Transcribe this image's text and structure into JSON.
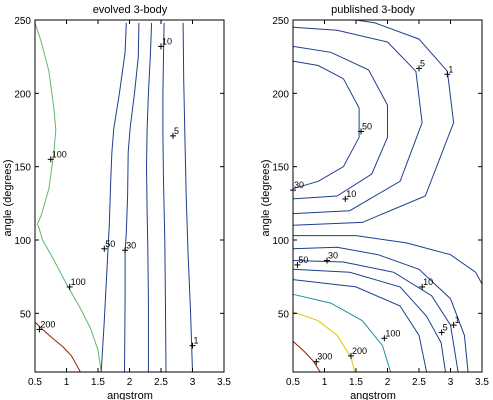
{
  "chart_data": [
    {
      "type": "contour",
      "title": "evolved 3-body",
      "xlabel": "angstrom",
      "ylabel": "angle (degrees)",
      "xlim": [
        0.5,
        3.5
      ],
      "ylim": [
        10,
        250
      ],
      "xticks": [
        0.5,
        1,
        1.5,
        2,
        2.5,
        3,
        3.5
      ],
      "yticks": [
        50,
        100,
        150,
        200,
        250
      ],
      "contours": [
        {
          "level_label": "",
          "color": "#8b2500",
          "points": [
            [
              0.5,
              44
            ],
            [
              0.62,
              39
            ],
            [
              0.78,
              33
            ],
            [
              0.95,
              27
            ],
            [
              1.08,
              21
            ],
            [
              1.17,
              14
            ],
            [
              1.22,
              10
            ]
          ]
        },
        {
          "level_label": "",
          "color": "#5fb86a",
          "points": [
            [
              1.55,
              10
            ],
            [
              1.5,
              25
            ],
            [
              1.38,
              40
            ],
            [
              1.2,
              55
            ],
            [
              1.0,
              70
            ],
            [
              0.78,
              88
            ],
            [
              0.62,
              100
            ],
            [
              0.55,
              110
            ]
          ]
        },
        {
          "level_label": "",
          "color": "#5fb86a",
          "points": [
            [
              0.5,
              248
            ],
            [
              0.6,
              235
            ],
            [
              0.72,
              215
            ],
            [
              0.8,
              190
            ],
            [
              0.83,
              175
            ],
            [
              0.8,
              160
            ],
            [
              0.72,
              135
            ],
            [
              0.6,
              117
            ],
            [
              0.53,
              110
            ]
          ]
        },
        {
          "level_label": "",
          "color": "#1e3f8f",
          "points": [
            [
              1.95,
              248
            ],
            [
              1.93,
              228
            ],
            [
              1.84,
              200
            ],
            [
              1.75,
              176
            ],
            [
              1.72,
              160
            ],
            [
              1.7,
              138
            ],
            [
              1.68,
              110
            ],
            [
              1.66,
              95
            ],
            [
              1.63,
              70
            ],
            [
              1.6,
              45
            ],
            [
              1.55,
              10
            ]
          ]
        },
        {
          "level_label": "",
          "color": "#1e3f8f",
          "points": [
            [
              2.15,
              248
            ],
            [
              2.14,
              225
            ],
            [
              2.08,
              200
            ],
            [
              2.01,
              176
            ],
            [
              1.98,
              160
            ],
            [
              1.97,
              130
            ],
            [
              1.95,
              105
            ],
            [
              1.93,
              92
            ],
            [
              1.93,
              60
            ],
            [
              1.92,
              10
            ]
          ]
        },
        {
          "level_label": "",
          "color": "#1e3f8f",
          "points": [
            [
              2.35,
              248
            ],
            [
              2.33,
              225
            ],
            [
              2.3,
              200
            ],
            [
              2.28,
              175
            ],
            [
              2.27,
              150
            ],
            [
              2.28,
              120
            ],
            [
              2.29,
              95
            ],
            [
              2.3,
              60
            ],
            [
              2.3,
              10
            ]
          ]
        },
        {
          "level_label": "",
          "color": "#1e3f8f",
          "points": [
            [
              2.55,
              248
            ],
            [
              2.54,
              225
            ],
            [
              2.53,
              200
            ],
            [
              2.53,
              172
            ],
            [
              2.54,
              140
            ],
            [
              2.56,
              100
            ],
            [
              2.57,
              60
            ],
            [
              2.58,
              10
            ]
          ]
        },
        {
          "level_label": "",
          "color": "#1e3f8f",
          "points": [
            [
              2.85,
              248
            ],
            [
              2.86,
              210
            ],
            [
              2.88,
              170
            ],
            [
              2.9,
              130
            ],
            [
              2.93,
              90
            ],
            [
              2.97,
              50
            ],
            [
              3.0,
              10
            ]
          ]
        }
      ],
      "labels": [
        {
          "text": "200",
          "x": 0.57,
          "y": 39
        },
        {
          "text": "100",
          "x": 1.05,
          "y": 68
        },
        {
          "text": "100",
          "x": 0.75,
          "y": 155
        },
        {
          "text": "50",
          "x": 1.6,
          "y": 94
        },
        {
          "text": "30",
          "x": 1.93,
          "y": 93
        },
        {
          "text": "10",
          "x": 2.5,
          "y": 232
        },
        {
          "text": "5",
          "x": 2.69,
          "y": 171
        },
        {
          "text": "1",
          "x": 3.0,
          "y": 28
        }
      ]
    },
    {
      "type": "contour",
      "title": "published 3-body",
      "xlabel": "angstrom",
      "ylabel": "angle (degrees)",
      "xlim": [
        0.5,
        3.5
      ],
      "ylim": [
        10,
        250
      ],
      "xticks": [
        0.5,
        1,
        1.5,
        2,
        2.5,
        3,
        3.5
      ],
      "yticks": [
        50,
        100,
        150,
        200,
        250
      ],
      "contours": [
        {
          "level_label": "",
          "color": "#8b2500",
          "points": [
            [
              0.5,
              31
            ],
            [
              0.68,
              24
            ],
            [
              0.83,
              17
            ],
            [
              0.93,
              10
            ]
          ]
        },
        {
          "level_label": "",
          "color": "#e8c000",
          "points": [
            [
              0.5,
              51
            ],
            [
              0.9,
              45
            ],
            [
              1.2,
              35
            ],
            [
              1.42,
              20
            ],
            [
              1.48,
              10
            ]
          ]
        },
        {
          "level_label": "",
          "color": "#1d8fa0",
          "points": [
            [
              0.5,
              63
            ],
            [
              1.1,
              57
            ],
            [
              1.6,
              45
            ],
            [
              1.92,
              28
            ],
            [
              2.05,
              10
            ]
          ]
        },
        {
          "level_label": "",
          "color": "#1e3f8f",
          "points": [
            [
              0.5,
              73
            ],
            [
              1.5,
              68
            ],
            [
              2.2,
              55
            ],
            [
              2.5,
              35
            ],
            [
              2.62,
              10
            ]
          ]
        },
        {
          "level_label": "",
          "color": "#1e3f8f",
          "points": [
            [
              0.5,
              80
            ],
            [
              1.4,
              78
            ],
            [
              2.2,
              68
            ],
            [
              2.62,
              48
            ],
            [
              2.85,
              30
            ],
            [
              2.92,
              10
            ]
          ]
        },
        {
          "level_label": "",
          "color": "#1e3f8f",
          "points": [
            [
              0.5,
              86
            ],
            [
              1.3,
              85
            ],
            [
              2.1,
              78
            ],
            [
              2.7,
              62
            ],
            [
              3.0,
              42
            ],
            [
              3.12,
              10
            ]
          ]
        },
        {
          "level_label": "",
          "color": "#1e3f8f",
          "points": [
            [
              0.5,
              94
            ],
            [
              1.2,
              95
            ],
            [
              1.85,
              90
            ],
            [
              2.5,
              80
            ],
            [
              3.0,
              60
            ],
            [
              3.22,
              35
            ],
            [
              3.28,
              10
            ]
          ]
        },
        {
          "level_label": "",
          "color": "#1e3f8f",
          "points": [
            [
              0.5,
              103
            ],
            [
              1.5,
              103
            ],
            [
              2.3,
              98
            ],
            [
              3.0,
              90
            ],
            [
              3.4,
              78
            ],
            [
              3.5,
              70
            ]
          ]
        },
        {
          "level_label": "",
          "color": "#1e3f8f",
          "points": [
            [
              0.5,
              135
            ],
            [
              0.9,
              140
            ],
            [
              1.3,
              150
            ],
            [
              1.55,
              170
            ],
            [
              1.55,
              190
            ],
            [
              1.3,
              210
            ],
            [
              0.9,
              219
            ],
            [
              0.5,
              222
            ]
          ]
        },
        {
          "level_label": "",
          "color": "#1e3f8f",
          "points": [
            [
              0.5,
              128
            ],
            [
              1.2,
              130
            ],
            [
              1.75,
              145
            ],
            [
              2.0,
              170
            ],
            [
              2.0,
              192
            ],
            [
              1.7,
              216
            ],
            [
              1.1,
              228
            ],
            [
              0.5,
              232
            ]
          ]
        },
        {
          "level_label": "",
          "color": "#1e3f8f",
          "points": [
            [
              0.5,
              118
            ],
            [
              1.4,
              120
            ],
            [
              2.2,
              140
            ],
            [
              2.55,
              180
            ],
            [
              2.45,
              215
            ],
            [
              2.0,
              235
            ],
            [
              1.2,
              243
            ],
            [
              0.5,
              245
            ]
          ]
        },
        {
          "level_label": "",
          "color": "#1e3f8f",
          "points": [
            [
              0.5,
              110
            ],
            [
              1.6,
              112
            ],
            [
              2.6,
              130
            ],
            [
              3.05,
              180
            ],
            [
              2.95,
              215
            ],
            [
              2.5,
              237
            ],
            [
              1.8,
              248
            ],
            [
              1.5,
              250
            ]
          ]
        }
      ],
      "labels": [
        {
          "text": "300",
          "x": 0.87,
          "y": 17
        },
        {
          "text": "200",
          "x": 1.42,
          "y": 21
        },
        {
          "text": "100",
          "x": 1.95,
          "y": 33
        },
        {
          "text": "5",
          "x": 2.86,
          "y": 37
        },
        {
          "text": "1",
          "x": 3.05,
          "y": 42
        },
        {
          "text": "10",
          "x": 2.55,
          "y": 68
        },
        {
          "text": "50",
          "x": 0.57,
          "y": 83
        },
        {
          "text": "30",
          "x": 1.04,
          "y": 86
        },
        {
          "text": "30",
          "x": 0.5,
          "y": 134
        },
        {
          "text": "10",
          "x": 1.33,
          "y": 128
        },
        {
          "text": "50",
          "x": 1.58,
          "y": 174
        },
        {
          "text": "5",
          "x": 2.5,
          "y": 217
        },
        {
          "text": "1",
          "x": 2.95,
          "y": 213
        }
      ]
    }
  ]
}
